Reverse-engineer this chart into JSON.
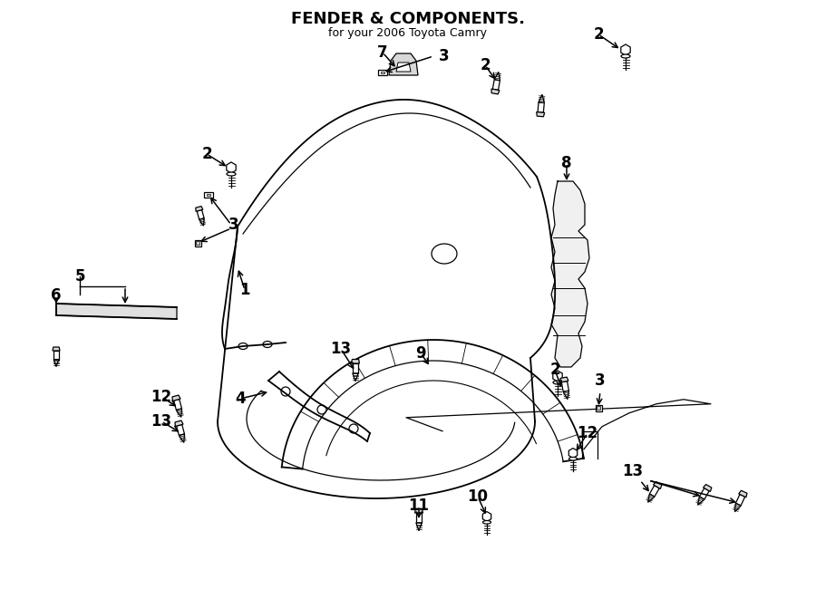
{
  "title": "FENDER & COMPONENTS.",
  "subtitle": "for your 2006 Toyota Camry",
  "bg": "#ffffff",
  "lc": "#000000",
  "fig_w": 9.0,
  "fig_h": 6.61,
  "dpi": 100
}
